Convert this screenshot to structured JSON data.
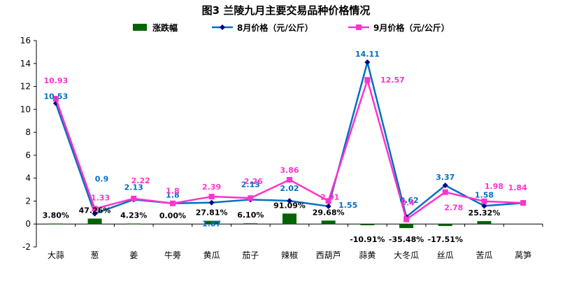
{
  "chart_data": {
    "type": "bar",
    "title": "图3  兰陵九月主要交易品种价格情况",
    "categories": [
      "大蒜",
      "葱",
      "姜",
      "牛蒡",
      "黄瓜",
      "茄子",
      "辣椒",
      "西葫芦",
      "蒜黄",
      "大冬瓜",
      "丝瓜",
      "苦瓜",
      "莴笋"
    ],
    "ylim": [
      -2,
      16
    ],
    "yticks": [
      -2,
      0,
      2,
      4,
      6,
      8,
      10,
      12,
      14,
      16
    ],
    "grid": false,
    "legend_position": "top",
    "series": [
      {
        "name": "涨跌幅",
        "type": "bar",
        "color": "#006400",
        "values": [
          0.038,
          0.4726,
          0.0423,
          0.0,
          0.2781,
          0.061,
          0.9109,
          0.2968,
          -0.1091,
          -0.3548,
          -0.1751,
          0.2532,
          null
        ],
        "labels": [
          "3.80%",
          "47.26%",
          "4.23%",
          "0.00%",
          "27.81%",
          "6.10%",
          "91.09%",
          "29.68%",
          "-10.91%",
          "-35.48%",
          "-17.51%",
          "25.32%",
          ""
        ]
      },
      {
        "name": "8月价格（元/公斤）",
        "type": "line",
        "color": "#0070C0",
        "marker_color": "#000080",
        "marker": "diamond",
        "values": [
          10.53,
          0.9,
          2.13,
          1.8,
          1.87,
          2.13,
          2.02,
          1.55,
          14.11,
          0.62,
          3.37,
          1.58,
          1.84
        ],
        "labels": [
          "10.53",
          "0.9",
          "2.13",
          "1.8",
          "1.87",
          "2.13",
          "2.02",
          "1.55",
          "14.11",
          "0.62",
          "3.37",
          "1.58",
          ""
        ]
      },
      {
        "name": "9月价格（元/公斤）",
        "type": "line",
        "color": "#FF33CC",
        "marker_color": "#FF33CC",
        "marker": "square",
        "values": [
          10.93,
          1.33,
          2.22,
          1.8,
          2.39,
          2.26,
          3.86,
          2.01,
          12.57,
          0.4,
          2.78,
          1.98,
          1.84
        ],
        "labels": [
          "10.93",
          "1.33",
          "2.22",
          "1.8",
          "2.39",
          "2.26",
          "3.86",
          "2.01",
          "12.57",
          "0.4",
          "2.78",
          "1.98",
          "1.84"
        ]
      }
    ]
  }
}
